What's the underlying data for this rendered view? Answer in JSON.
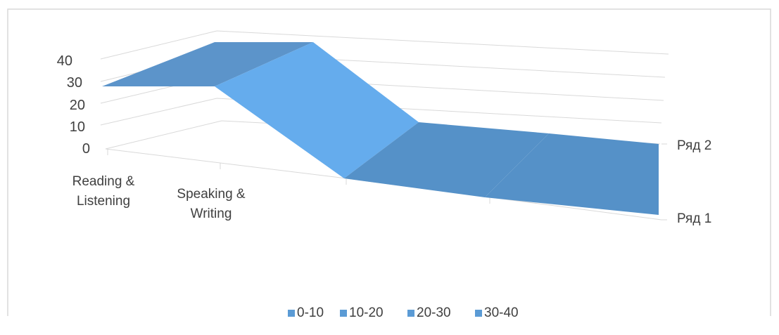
{
  "chart_data": {
    "type": "area",
    "title": "",
    "categories": [
      "Reading & Listening",
      "Speaking & Writing",
      "",
      "",
      ""
    ],
    "series": [
      {
        "name": "Ряд 1",
        "values": [
          30,
          30,
          0,
          0,
          0
        ]
      },
      {
        "name": "Ряд 2",
        "values": [
          30,
          30,
          0,
          0,
          0
        ]
      }
    ],
    "y_ticks": [
      0,
      10,
      20,
      30,
      40
    ],
    "ylim": [
      0,
      40
    ],
    "legend": [
      "0-10",
      "10-20",
      "20-30",
      "30-40"
    ],
    "legend_position": "bottom",
    "grid": true,
    "colors": {
      "top_surface": "#5c94ca",
      "slope": "#65aced",
      "floor": "#5591c8",
      "legend_swatch": "#5b9bd5",
      "grid": "#d9d9d9",
      "frame": "#d9d9d9"
    }
  }
}
